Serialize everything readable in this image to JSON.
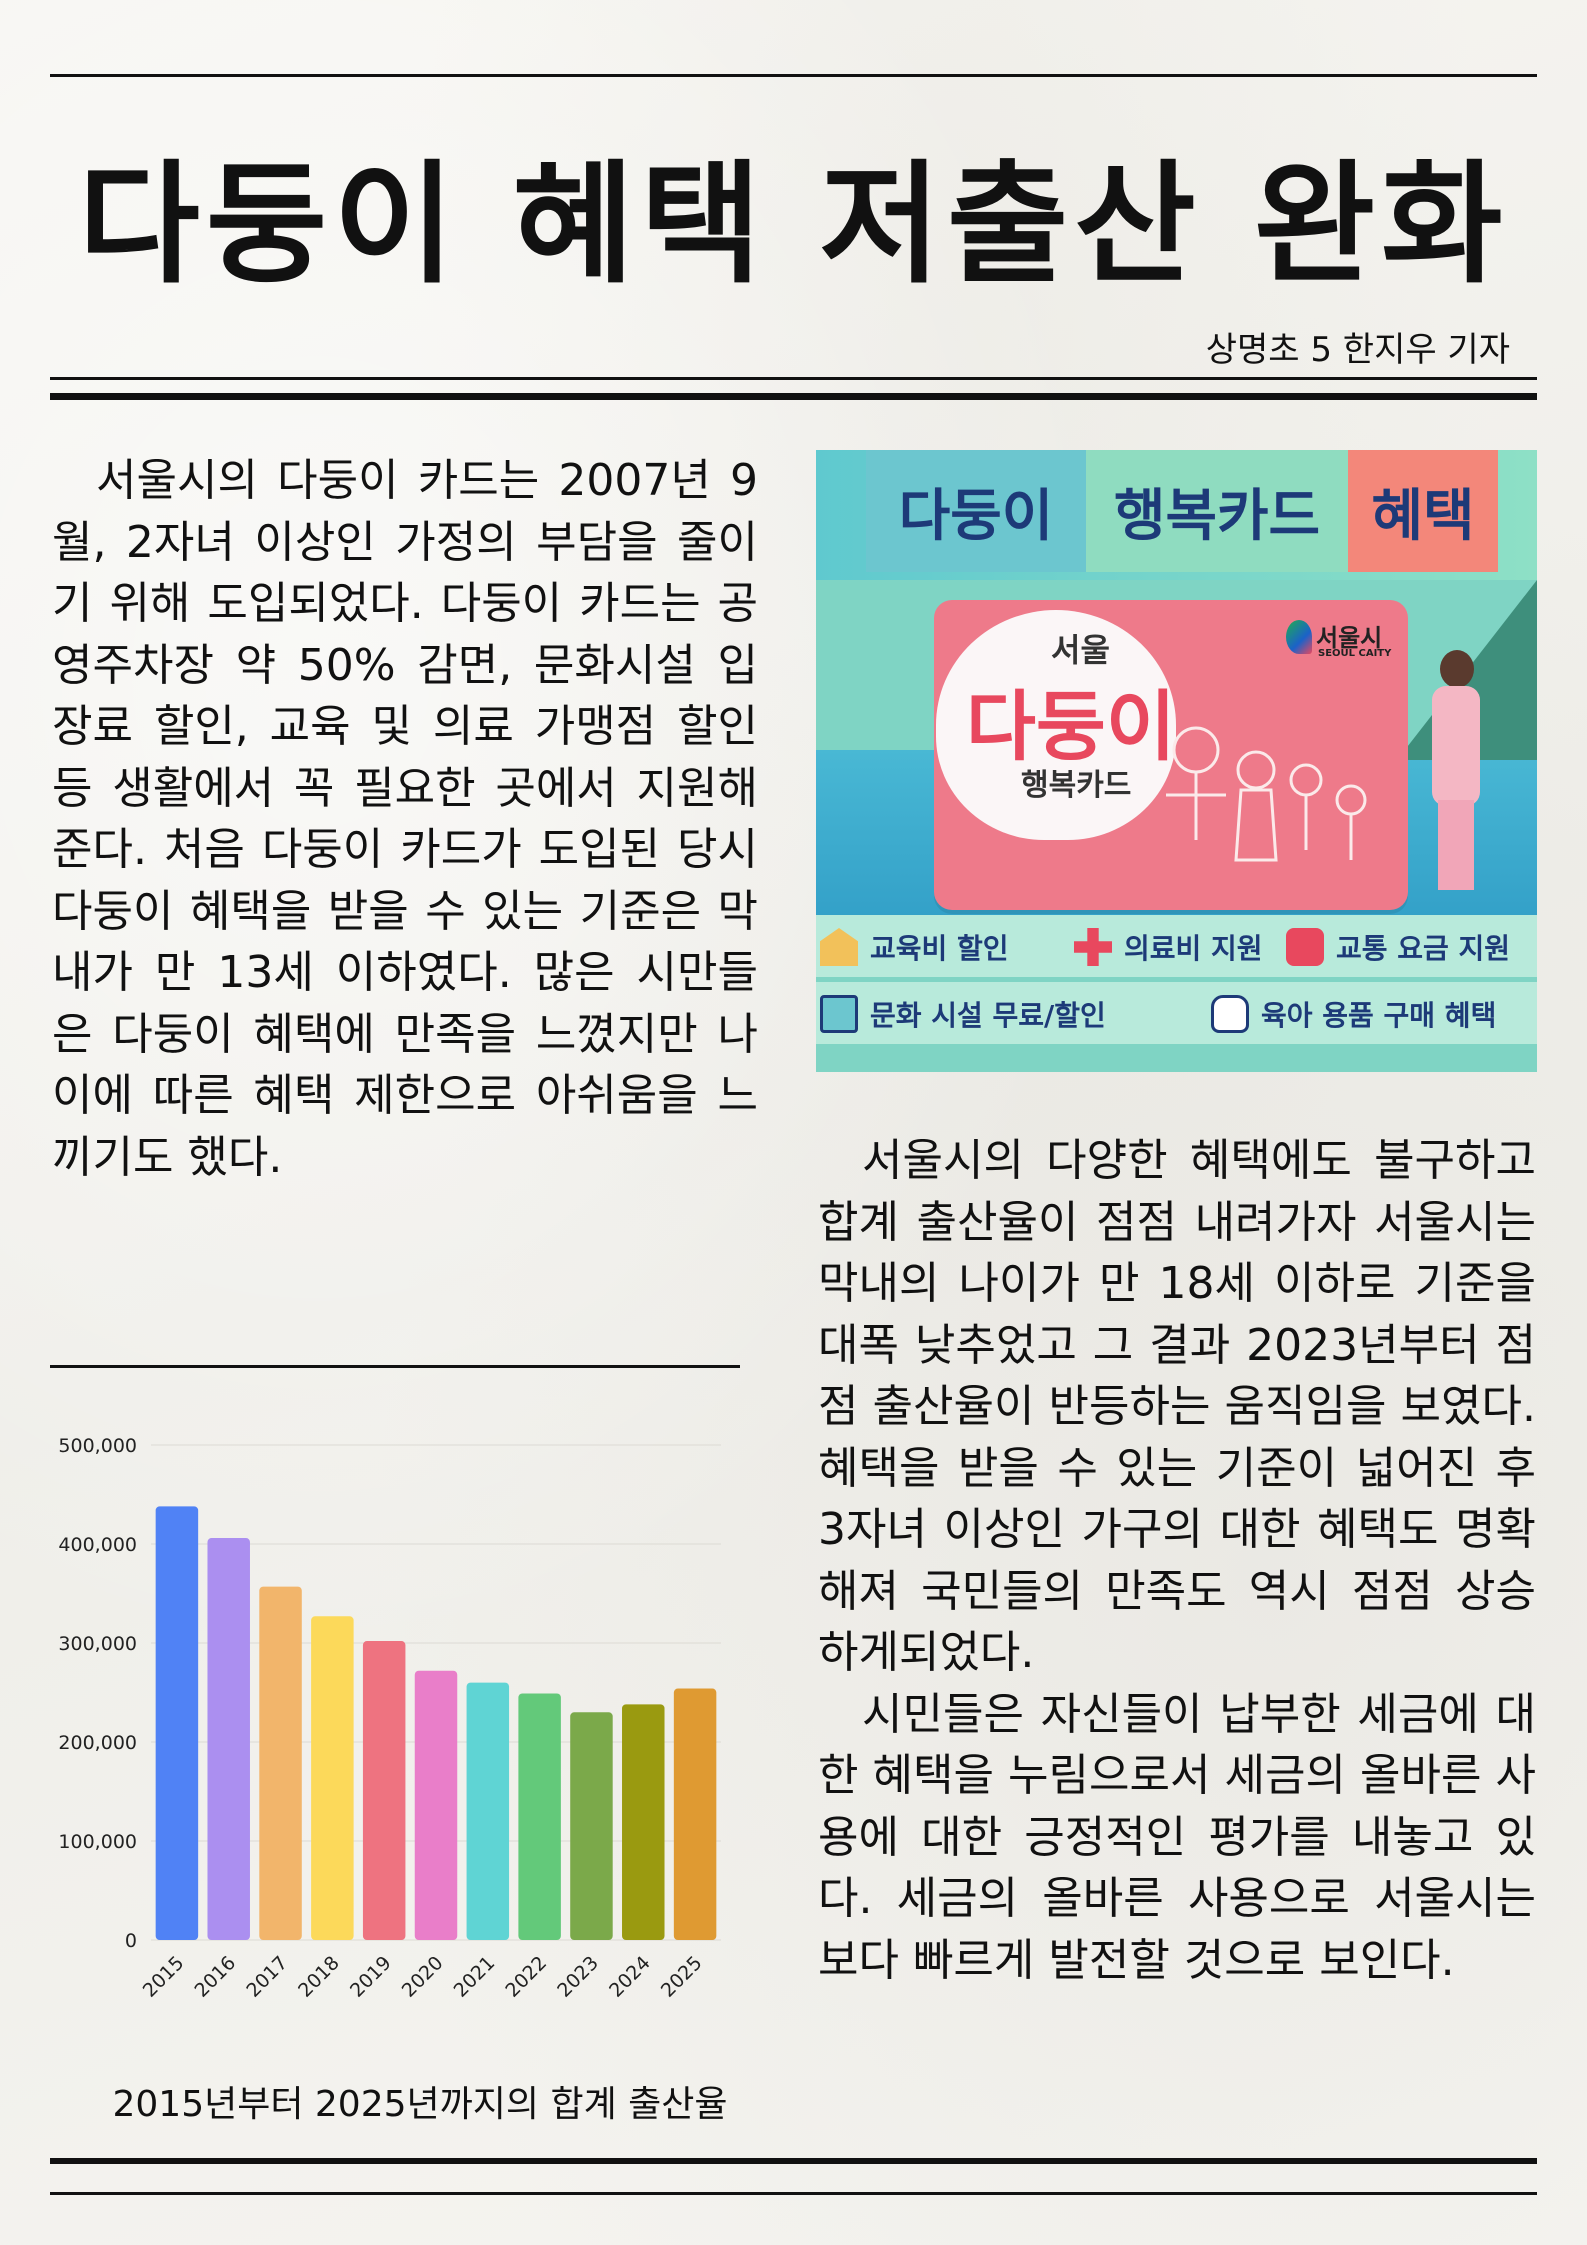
{
  "headline": "다둥이 혜택 저출산 완화",
  "byline": "상명초 5 한지우 기자",
  "left_article": {
    "paragraphs": [
      "서울시의 다둥이 카드는 2007년 9월, 2자녀 이상인 가정의 부담을 줄이기 위해 도입되었다. 다둥이 카드는 공영주차장 약 50% 감면, 문화시설 입장료 할인, 교육 및 의료 가맹점 할인 등 생활에서 꼭 필요한 곳에서 지원해준다. 처음 다둥이 카드가 도입된 당시 다둥이 혜택을 받을 수 있는 기준은 막내가 만 13세 이하였다. 많은 시만들은 다둥이 혜택에 만족을 느꼈지만 나이에 따른 혜택 제한으로 아쉬움을 느끼기도 했다."
    ]
  },
  "right_article": {
    "paragraphs": [
      "서울시의 다양한 혜택에도 불구하고 합계 출산율이 점점 내려가자 서울시는 막내의 나이가 만 18세 이하로 기준을 대폭 낮추었고 그 결과 2023년부터  점점 출산율이 반등하는 움직임을 보였다. 혜택을 받을 수 있는 기준이 넓어진 후 3자녀 이상인 가구의 대한 혜택도 명확해져 국민들의 만족도 역시 점점 상승 하게되었다.",
      "시민들은 자신들이 납부한 세금에 대한 혜택을 누림으로서 세금의 올바른 사용에 대한 긍정적인 평가를 내놓고 있다. 세금의 올바른 사용으로 서울시는 보다 빠르게 발전할 것으로 보인다."
    ]
  },
  "promo": {
    "title_parts": [
      "다둥이",
      "행복카드",
      "혜택"
    ],
    "title_colors": [
      "#6cc6cf",
      "#8fdcc0",
      "#f3877a"
    ],
    "card_city": "서울",
    "card_name": "다둥이",
    "card_sub": "행복카드",
    "logo_text": "서울시",
    "logo_sub": "SEOUL CAITY",
    "features": [
      {
        "icon": "school-icon",
        "label": "교육비 할인"
      },
      {
        "icon": "medical-cross-icon",
        "label": "의료비 지원"
      },
      {
        "icon": "bus-icon",
        "label": "교통 요금 지원"
      },
      {
        "icon": "ticket-icon",
        "label": "문화 시설 무료/할인"
      },
      {
        "icon": "baby-bottle-icon",
        "label": "육아 용품 구매 혜택"
      }
    ]
  },
  "chart_caption": "2015년부터 2025년까지의 합계 출산율",
  "chart_data": {
    "type": "bar",
    "categories": [
      "2015",
      "2016",
      "2017",
      "2018",
      "2019",
      "2020",
      "2021",
      "2022",
      "2023",
      "2024",
      "2025"
    ],
    "values": [
      438000,
      406000,
      357000,
      327000,
      302000,
      272000,
      260000,
      249000,
      230000,
      238000,
      254000
    ],
    "colors": [
      "#5082f5",
      "#ab8ff0",
      "#f2b56b",
      "#fcd95a",
      "#ee7380",
      "#e97ec9",
      "#5fd4d4",
      "#63c97a",
      "#7ba94a",
      "#9a9a10",
      "#df9a32"
    ],
    "yticks": [
      "0",
      "100,000",
      "200,000",
      "300,000",
      "400,000",
      "500,000"
    ],
    "ylim": [
      0,
      500000
    ],
    "grid": true,
    "title": "",
    "xlabel": "",
    "ylabel": ""
  }
}
